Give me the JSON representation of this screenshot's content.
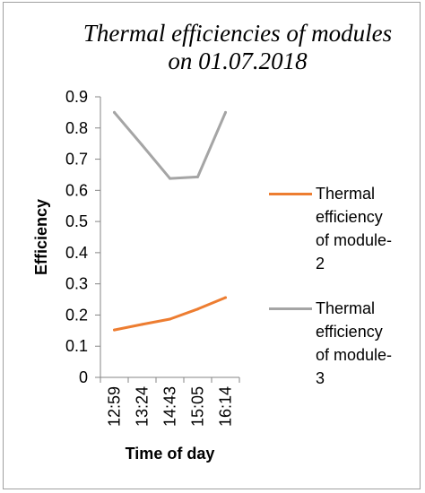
{
  "chart_data": {
    "type": "line",
    "title": [
      "Thermal efficiencies of modules",
      "on 01.07.2018"
    ],
    "xlabel": "Time of day",
    "ylabel": "Efficiency",
    "categories": [
      "12:59",
      "13:24",
      "14:43",
      "15:05",
      "16:14"
    ],
    "ylim": [
      0,
      0.9
    ],
    "yticks": [
      "0",
      "0.1",
      "0.2",
      "0.3",
      "0.4",
      "0.5",
      "0.6",
      "0.7",
      "0.8",
      "0.9"
    ],
    "grid": false,
    "legend_position": "right",
    "series": [
      {
        "name": "Thermal efficiency of module-2",
        "name_lines": [
          "Thermal",
          "efficiency",
          "of module-",
          "2"
        ],
        "color": "#ed7d31",
        "values": [
          0.152,
          0.17,
          0.187,
          0.219,
          0.256
        ]
      },
      {
        "name": "Thermal efficiency of module-3",
        "name_lines": [
          "Thermal",
          "efficiency",
          "of module-",
          "3"
        ],
        "color": "#a5a5a5",
        "values": [
          0.85,
          0.745,
          0.638,
          0.643,
          0.85
        ]
      }
    ]
  }
}
